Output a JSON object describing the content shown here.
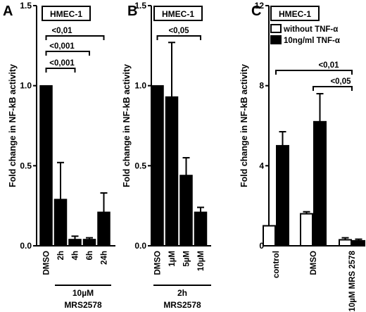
{
  "chart_data": [
    {
      "panel": "A",
      "type": "bar",
      "cell_label": "HMEC-1",
      "ylabel": "Fold change in NF-kB activity",
      "ylim": [
        0,
        1.5
      ],
      "yticks": [
        "0.0",
        "0.5",
        "1.0",
        "1.5"
      ],
      "categories": [
        "DMSO",
        "2h",
        "4h",
        "6h",
        "24h"
      ],
      "values": [
        1.0,
        0.29,
        0.04,
        0.04,
        0.21
      ],
      "errors": [
        0,
        0.23,
        0.02,
        0.01,
        0.12
      ],
      "colors": [
        "#000000",
        "#000000",
        "#000000",
        "#000000",
        "#000000"
      ],
      "group_label": [
        "10µM",
        "MRS2578"
      ],
      "significance": [
        {
          "label": "<0,01",
          "from": 0,
          "to": 4
        },
        {
          "label": "<0,001",
          "from": 0,
          "to": 3
        },
        {
          "label": "<0,001",
          "from": 0,
          "to": 2
        }
      ]
    },
    {
      "panel": "B",
      "type": "bar",
      "cell_label": "HMEC-1",
      "ylabel": "Fold change in NF-kB activity",
      "ylim": [
        0,
        1.5
      ],
      "yticks": [
        "0.0",
        "0.5",
        "1.0",
        "1.5"
      ],
      "categories": [
        "DMSO",
        "1µM",
        "5µM",
        "10µM"
      ],
      "values": [
        1.0,
        0.93,
        0.44,
        0.21
      ],
      "errors": [
        0,
        0.34,
        0.11,
        0.03
      ],
      "colors": [
        "#000000",
        "#000000",
        "#000000",
        "#000000"
      ],
      "group_label": [
        "2h",
        "MRS2578"
      ],
      "significance": [
        {
          "label": "<0,05",
          "from": 0,
          "to": 3
        }
      ]
    },
    {
      "panel": "C",
      "type": "bar",
      "cell_label": "HMEC-1",
      "ylabel": "Fold change in NF-kB activity",
      "ylim": [
        0,
        12
      ],
      "yticks": [
        "0",
        "4",
        "8",
        "12"
      ],
      "categories": [
        "control",
        "DMSO",
        "10µM MRS 2578"
      ],
      "series": [
        {
          "name": "without TNF-α",
          "values": [
            1.0,
            1.6,
            0.3
          ],
          "errors": [
            0,
            0.1,
            0.1
          ],
          "color": "#ffffff"
        },
        {
          "name": "10ng/ml TNF-α",
          "values": [
            5.0,
            6.2,
            0.25
          ],
          "errors": [
            0.7,
            1.4,
            0.08
          ],
          "color": "#000000"
        }
      ],
      "legend_position": "top-right",
      "significance": [
        {
          "label": "<0,01",
          "from": 0,
          "to": 2
        },
        {
          "label": "<0,05",
          "from": 1,
          "to": 2
        }
      ]
    }
  ]
}
